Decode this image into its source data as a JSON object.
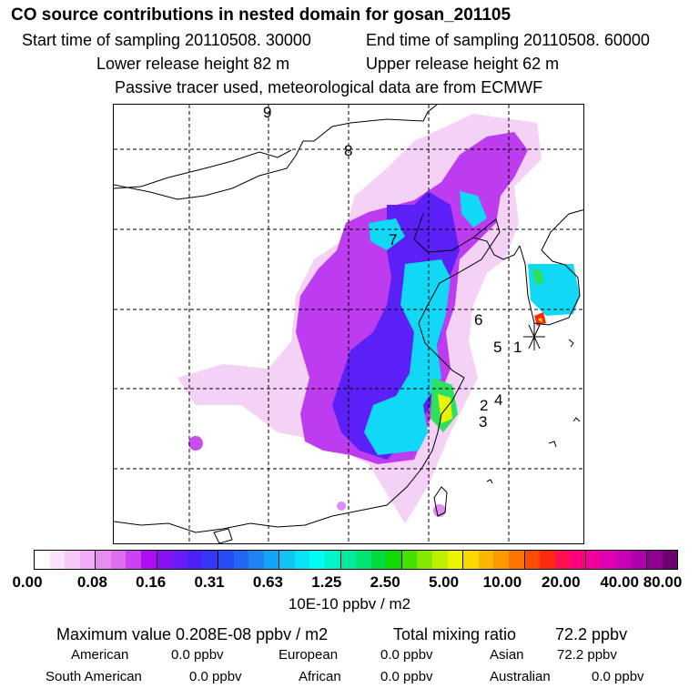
{
  "header": {
    "title": "CO  source contributions in nested domain for gosan_201105",
    "start_label": "Start time of sampling 20110508. 30000",
    "end_label": "End time of sampling 20110508. 60000",
    "lower_label": "Lower release height   82 m",
    "upper_label": "Upper release height   62 m",
    "note": "Passive tracer used, meteorological data are from ECMWF"
  },
  "map": {
    "labels": [
      "9",
      "8",
      "7",
      "6",
      "5",
      "1",
      "2",
      "4",
      "3"
    ]
  },
  "colorbar": {
    "ticks": [
      "0.00",
      "0.08",
      "0.16",
      "0.31",
      "0.63",
      "1.25",
      "2.50",
      "5.00",
      "10.00",
      "20.00",
      "40.00",
      "80.00"
    ],
    "colors": [
      "#ffffff",
      "#fbe4fb",
      "#f6c8f6",
      "#f2acf4",
      "#e98cf0",
      "#de6cef",
      "#cc42ef",
      "#b00cf4",
      "#8a10f4",
      "#6a1cf6",
      "#4a22f8",
      "#3636f6",
      "#2a4cf6",
      "#2266f4",
      "#1e84f4",
      "#14a4f6",
      "#10c4f6",
      "#08e4f6",
      "#00fcf4",
      "#00f4c8",
      "#00ec9c",
      "#00e470",
      "#00dc40",
      "#10d800",
      "#44e000",
      "#84e800",
      "#bcf000",
      "#ecf400",
      "#fcd800",
      "#fcb800",
      "#fc9800",
      "#fc7400",
      "#fc4c00",
      "#fc2a10",
      "#fc1050",
      "#fc0080",
      "#f0009c",
      "#e000b0",
      "#c800b8",
      "#ac00ac",
      "#900090",
      "#6c006c"
    ],
    "units": "10E-10 ppbv / m2"
  },
  "footer": {
    "max_label": "Maximum value  0.208E-08 ppbv / m2",
    "total_label": "Total mixing ratio",
    "total_value": "72.2 ppbv",
    "regions": [
      {
        "name": "American",
        "value": "0.0 ppbv"
      },
      {
        "name": "European",
        "value": "0.0 ppbv"
      },
      {
        "name": "Asian",
        "value": "72.2 ppbv"
      },
      {
        "name": "South American",
        "value": "0.0 ppbv"
      },
      {
        "name": "African",
        "value": "0.0 ppbv"
      },
      {
        "name": "Australian",
        "value": "0.0 ppbv"
      }
    ]
  }
}
